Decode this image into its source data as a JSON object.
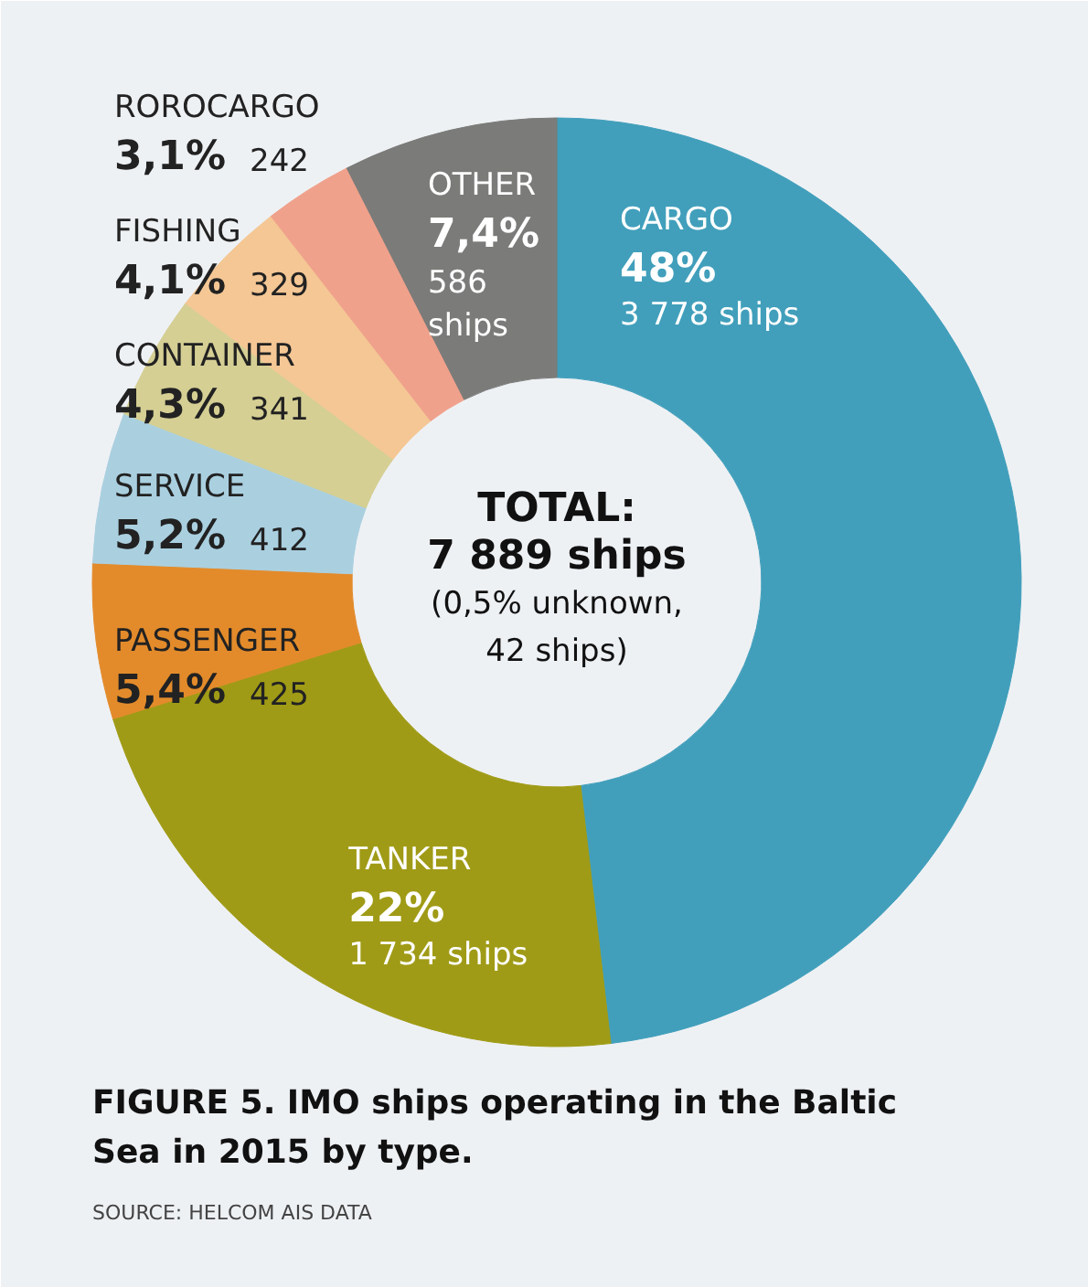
{
  "chart_data": {
    "type": "donut",
    "title": "FIGURE 5. IMO ships operating in the Baltic Sea in 2015 by type.",
    "categories": [
      "CARGO",
      "TANKER",
      "PASSENGER",
      "SERVICE",
      "CONTAINER",
      "FISHING",
      "ROROCARGO",
      "OTHER"
    ],
    "values": [
      3778,
      1734,
      425,
      412,
      341,
      329,
      242,
      586
    ],
    "colors": [
      "#419fbb",
      "#a09b16",
      "#e38b2b",
      "#aad0e0",
      "#d5cf94",
      "#f4c795",
      "#f0a18b",
      "#7b7b79"
    ],
    "value_labels": [
      "48%\n3 778 ships",
      "22%\n1 734 ships",
      "5,4% 425",
      "5,2% 412",
      "4,3% 341",
      "4,1% 329",
      "3,1% 242",
      "7,4%\n586\nships"
    ],
    "annotations": [
      "TOTAL:\n7 889 ships",
      "(0,5% unknown,\n42 ships)",
      "SOURCE: HELCOM AIS DATA"
    ]
  }
}
